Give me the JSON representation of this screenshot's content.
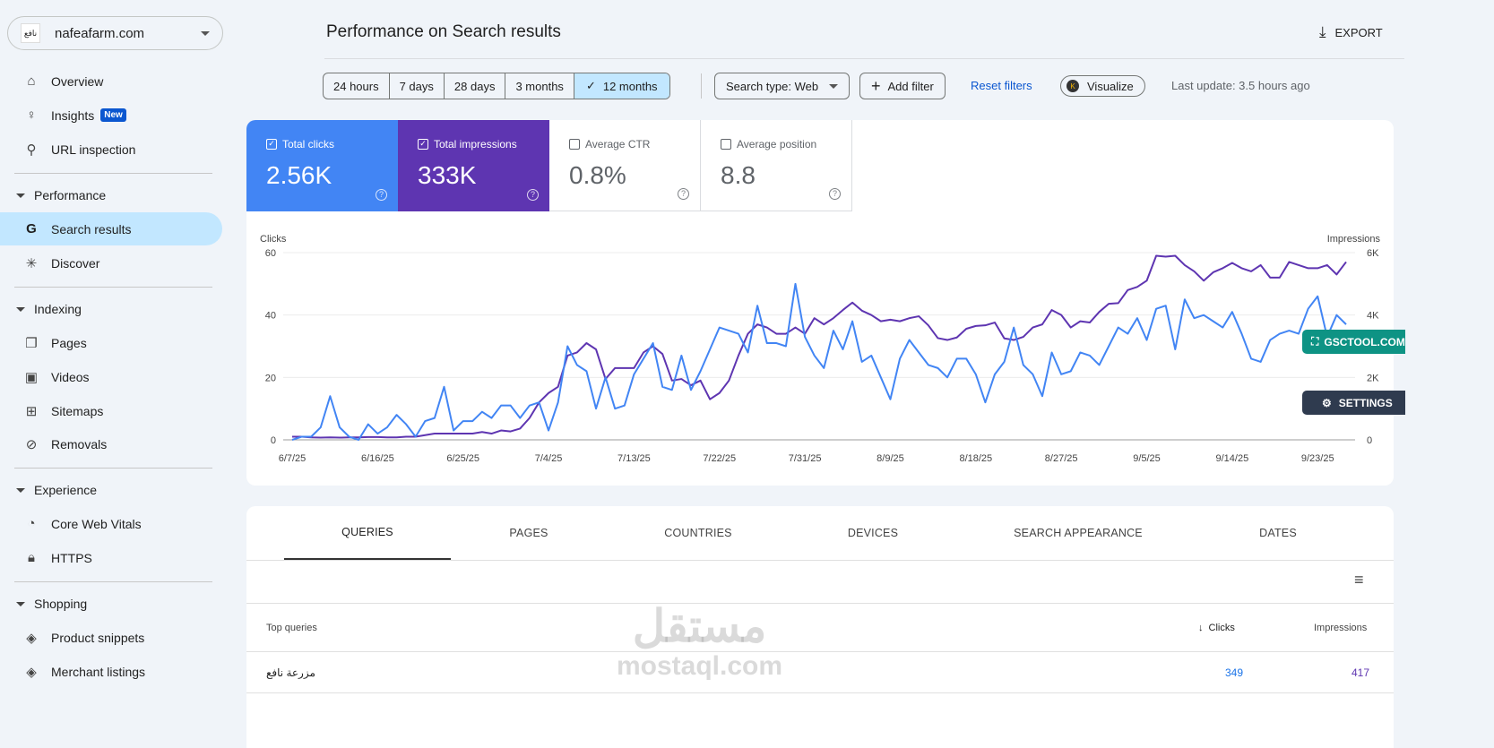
{
  "property": {
    "logo_text": "نافع",
    "name": "nafeafarm.com"
  },
  "nav": {
    "top": [
      {
        "label": "Overview",
        "icon": "home-icon"
      },
      {
        "label": "Insights",
        "icon": "lightbulb-icon",
        "badge": "New"
      },
      {
        "label": "URL inspection",
        "icon": "search-icon"
      }
    ],
    "performance": {
      "label": "Performance",
      "items": [
        {
          "label": "Search results",
          "icon": "google-g-icon"
        },
        {
          "label": "Discover",
          "icon": "asterisk-icon"
        }
      ]
    },
    "indexing": {
      "label": "Indexing",
      "items": [
        {
          "label": "Pages",
          "icon": "pages-icon"
        },
        {
          "label": "Videos",
          "icon": "video-icon"
        },
        {
          "label": "Sitemaps",
          "icon": "sitemap-icon"
        },
        {
          "label": "Removals",
          "icon": "eye-off-icon"
        }
      ]
    },
    "experience": {
      "label": "Experience",
      "items": [
        {
          "label": "Core Web Vitals",
          "icon": "gauge-icon"
        },
        {
          "label": "HTTPS",
          "icon": "lock-icon"
        }
      ]
    },
    "shopping": {
      "label": "Shopping",
      "items": [
        {
          "label": "Product snippets",
          "icon": "layers-icon"
        },
        {
          "label": "Merchant listings",
          "icon": "layers-icon"
        }
      ]
    }
  },
  "header": {
    "title": "Performance on Search results",
    "export": "EXPORT"
  },
  "filters": {
    "ranges": [
      "24 hours",
      "7 days",
      "28 days",
      "3 months",
      "12 months"
    ],
    "selected": "12 months",
    "search_type": "Search type: Web",
    "add_filter": "Add filter",
    "reset": "Reset filters",
    "visualize": "Visualize",
    "last_update": "Last update: 3.5 hours ago"
  },
  "metrics": [
    {
      "label": "Total clicks",
      "value": "2.56K",
      "checked": true,
      "color": "#4285f4"
    },
    {
      "label": "Total impressions",
      "value": "333K",
      "checked": true,
      "color": "#5e35b1"
    },
    {
      "label": "Average CTR",
      "value": "0.8%",
      "checked": false
    },
    {
      "label": "Average position",
      "value": "8.8",
      "checked": false
    }
  ],
  "overlay": {
    "gsctool": "GSCTOOL.COM",
    "settings": "SETTINGS"
  },
  "chart_data": {
    "type": "line",
    "ylabel_left": "Clicks",
    "ylabel_right": "Impressions",
    "y_left_ticks": [
      "0",
      "20",
      "40",
      "60"
    ],
    "y_left_range": [
      0,
      60
    ],
    "y_right_ticks": [
      "0",
      "2K",
      "4K",
      "6K"
    ],
    "y_right_range": [
      0,
      6000
    ],
    "x_range": [
      "6/7/25",
      "9/26/25"
    ],
    "x_ticks": [
      "6/7/25",
      "6/16/25",
      "6/25/25",
      "7/4/25",
      "7/13/25",
      "7/22/25",
      "7/31/25",
      "8/9/25",
      "8/18/25",
      "8/27/25",
      "9/5/25",
      "9/14/25",
      "9/23/25"
    ],
    "grid": true,
    "series": [
      {
        "name": "Clicks",
        "color": "#4285f4",
        "axis": "left",
        "values": [
          0,
          1,
          1,
          4,
          14,
          4,
          1,
          0,
          5,
          2,
          4,
          8,
          5,
          1,
          6,
          7,
          17,
          3,
          6,
          6,
          9,
          7,
          11,
          11,
          7,
          11,
          12,
          3,
          12,
          30,
          24,
          22,
          10,
          20,
          10,
          11,
          21,
          26,
          31,
          17,
          16,
          27,
          16,
          22,
          29,
          36,
          35,
          34,
          28,
          43,
          31,
          31,
          30,
          50,
          33,
          27,
          23,
          35,
          29,
          38,
          25,
          27,
          20,
          13,
          26,
          32,
          28,
          24,
          23,
          20,
          26,
          26,
          21,
          12,
          21,
          25,
          36,
          24,
          21,
          14,
          28,
          21,
          22,
          28,
          27,
          24,
          30,
          36,
          34,
          39,
          32,
          42,
          43,
          29,
          45,
          39,
          40,
          38,
          36,
          41,
          34,
          26,
          25,
          32,
          34,
          35,
          34,
          42,
          46,
          33,
          40,
          37
        ]
      },
      {
        "name": "Impressions",
        "color": "#5e35b1",
        "axis": "right",
        "values": [
          100,
          100,
          80,
          70,
          80,
          70,
          80,
          80,
          90,
          90,
          80,
          80,
          100,
          100,
          150,
          200,
          200,
          200,
          200,
          200,
          250,
          200,
          300,
          270,
          360,
          700,
          1200,
          1500,
          1700,
          2700,
          2800,
          3100,
          2900,
          1950,
          2300,
          2300,
          2300,
          2800,
          3000,
          2750,
          1900,
          1950,
          1750,
          1900,
          1300,
          1500,
          1900,
          2700,
          3400,
          3700,
          3600,
          3400,
          3400,
          3600,
          3400,
          3900,
          3700,
          3900,
          4160,
          4400,
          4140,
          4000,
          3800,
          3850,
          3800,
          3900,
          3960,
          3670,
          3260,
          3200,
          3280,
          3560,
          3650,
          3670,
          3760,
          3250,
          3200,
          3300,
          3600,
          3700,
          4160,
          4000,
          3600,
          3800,
          3760,
          4100,
          4360,
          4380,
          4800,
          4900,
          5100,
          5900,
          5870,
          5900,
          5600,
          5400,
          5100,
          5370,
          5500,
          5670,
          5500,
          5400,
          5600,
          5200,
          5200,
          5700,
          5600,
          5500,
          5500,
          5600,
          5300,
          5700
        ]
      }
    ]
  },
  "table": {
    "tabs": [
      "QUERIES",
      "PAGES",
      "COUNTRIES",
      "DEVICES",
      "SEARCH APPEARANCE",
      "DATES"
    ],
    "active_tab": "QUERIES",
    "headers": {
      "query": "Top queries",
      "clicks": "Clicks",
      "impressions": "Impressions"
    },
    "rows": [
      {
        "query": "مزرعة نافع",
        "clicks": "349",
        "impressions": "417"
      }
    ]
  },
  "watermark": {
    "arabic": "مستقل",
    "latin": "mostaql.com"
  }
}
